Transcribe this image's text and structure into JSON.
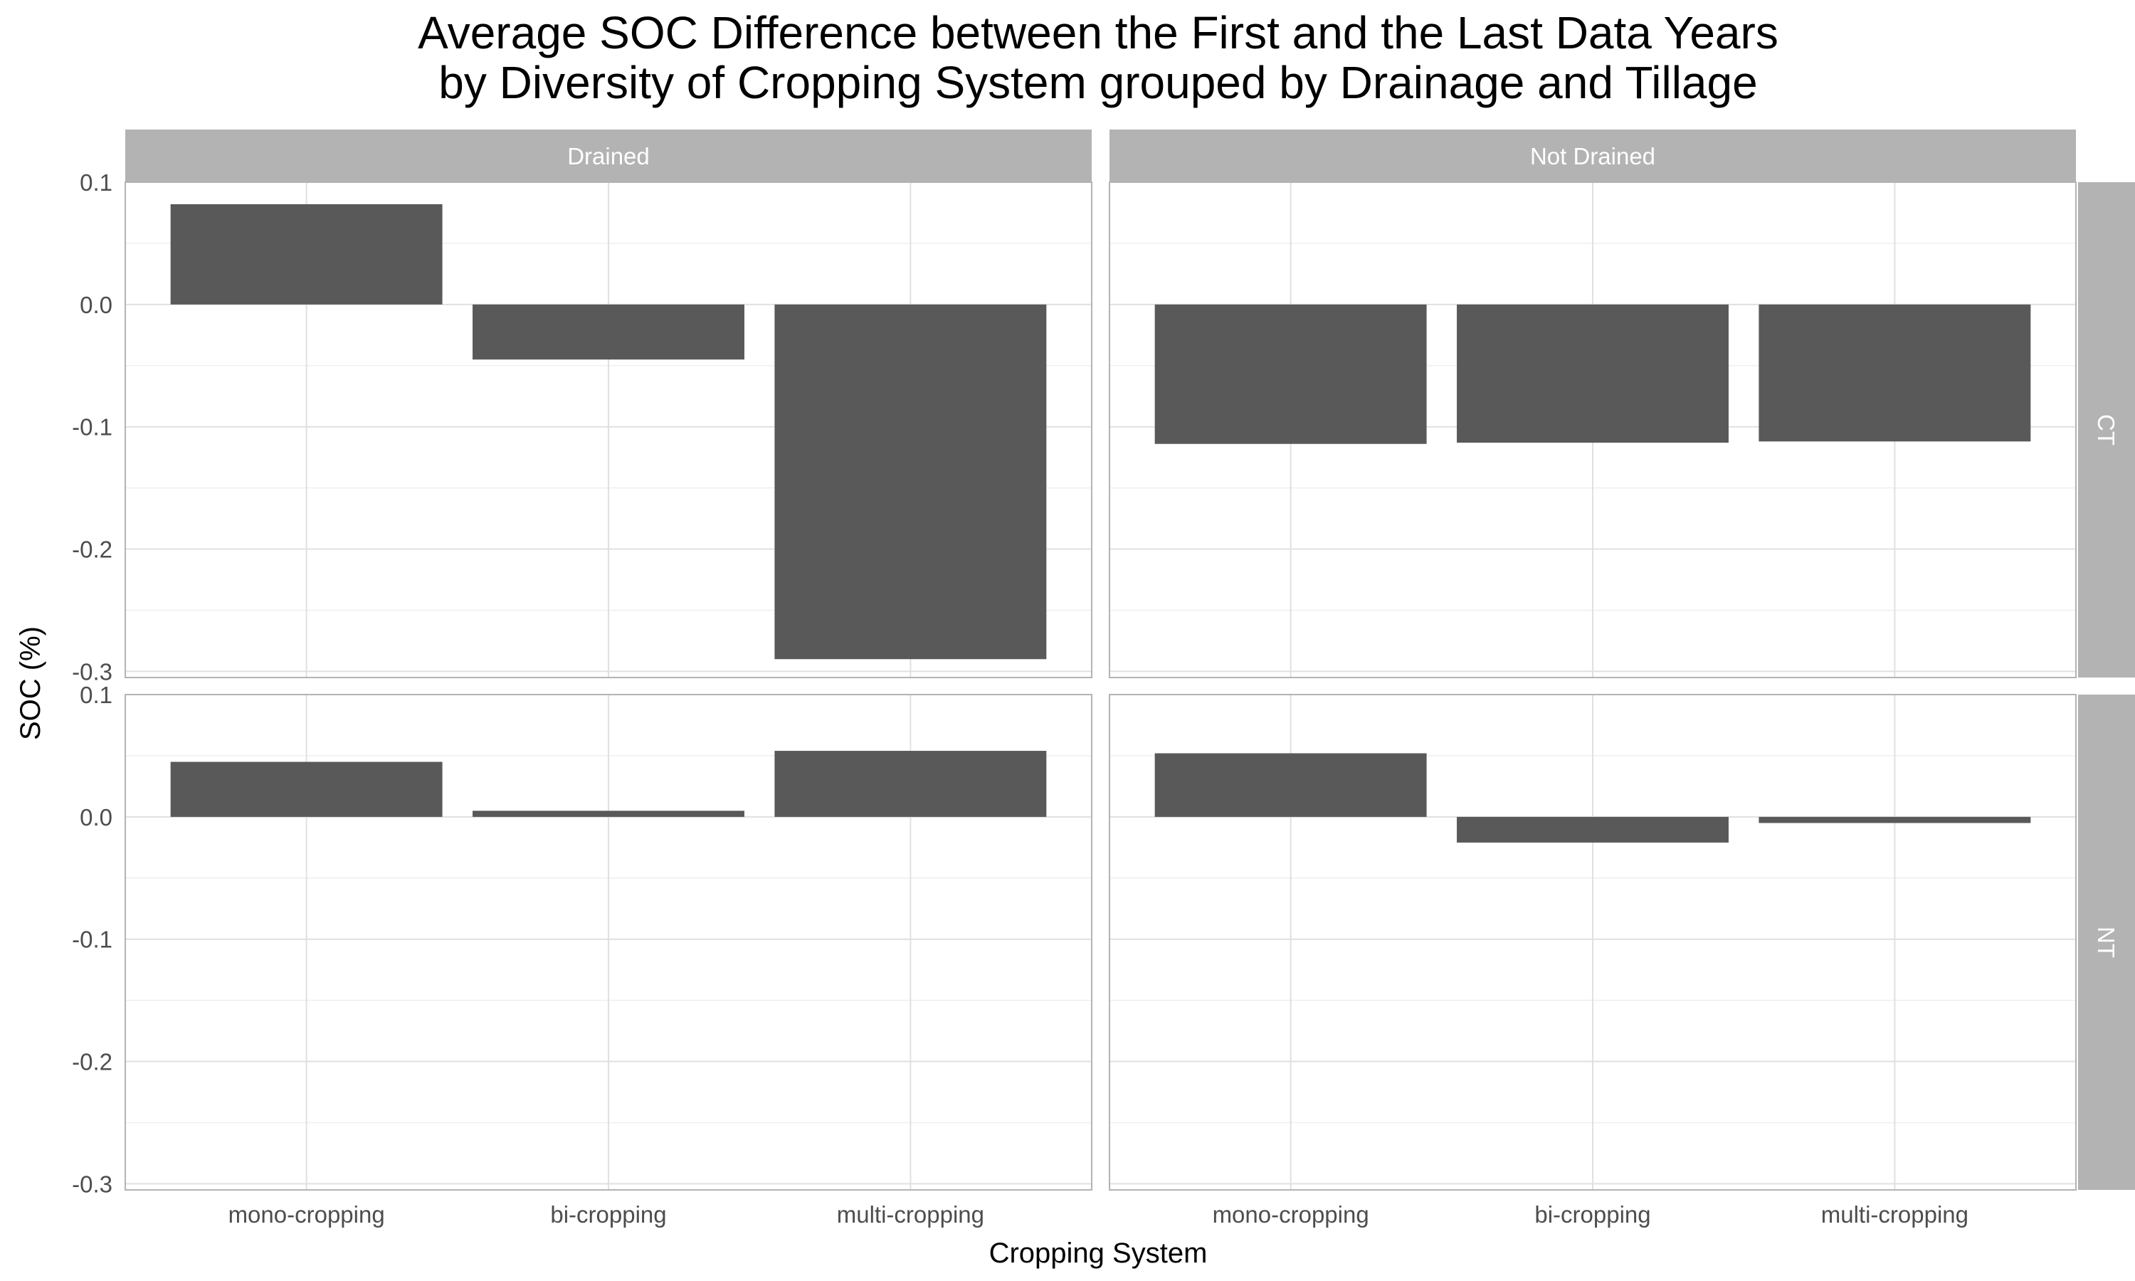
{
  "chart_data": {
    "type": "bar",
    "title": "Average SOC Difference between the First and the Last Data Years",
    "subtitle": "by Diversity of Cropping System grouped by Drainage and Tillage",
    "xlabel": "Cropping System",
    "ylabel": "SOC (%)",
    "categories": [
      "mono-cropping",
      "bi-cropping",
      "multi-cropping"
    ],
    "yticks": [
      "0.1",
      "0.0",
      "-0.1",
      "-0.2",
      "-0.3"
    ],
    "ytick_values": [
      0.1,
      0.0,
      -0.1,
      -0.2,
      -0.3
    ],
    "ylim": [
      -0.305,
      0.1
    ],
    "grid": true,
    "column_facets": [
      "Drained",
      "Not Drained"
    ],
    "row_facets": [
      "CT",
      "NT"
    ],
    "colors": {
      "bar": "#595959",
      "strip": "#b3b3b3",
      "grid_major": "#e0e0e0",
      "grid_minor": "#efefef",
      "panel_border": "#b3b3b3"
    },
    "panels": [
      {
        "column": "Drained",
        "row": "CT",
        "values": [
          0.082,
          -0.045,
          -0.29
        ]
      },
      {
        "column": "Not Drained",
        "row": "CT",
        "values": [
          -0.114,
          -0.113,
          -0.112
        ]
      },
      {
        "column": "Drained",
        "row": "NT",
        "values": [
          0.045,
          0.005,
          0.054
        ]
      },
      {
        "column": "Not Drained",
        "row": "NT",
        "values": [
          0.052,
          -0.021,
          -0.005
        ]
      }
    ]
  }
}
